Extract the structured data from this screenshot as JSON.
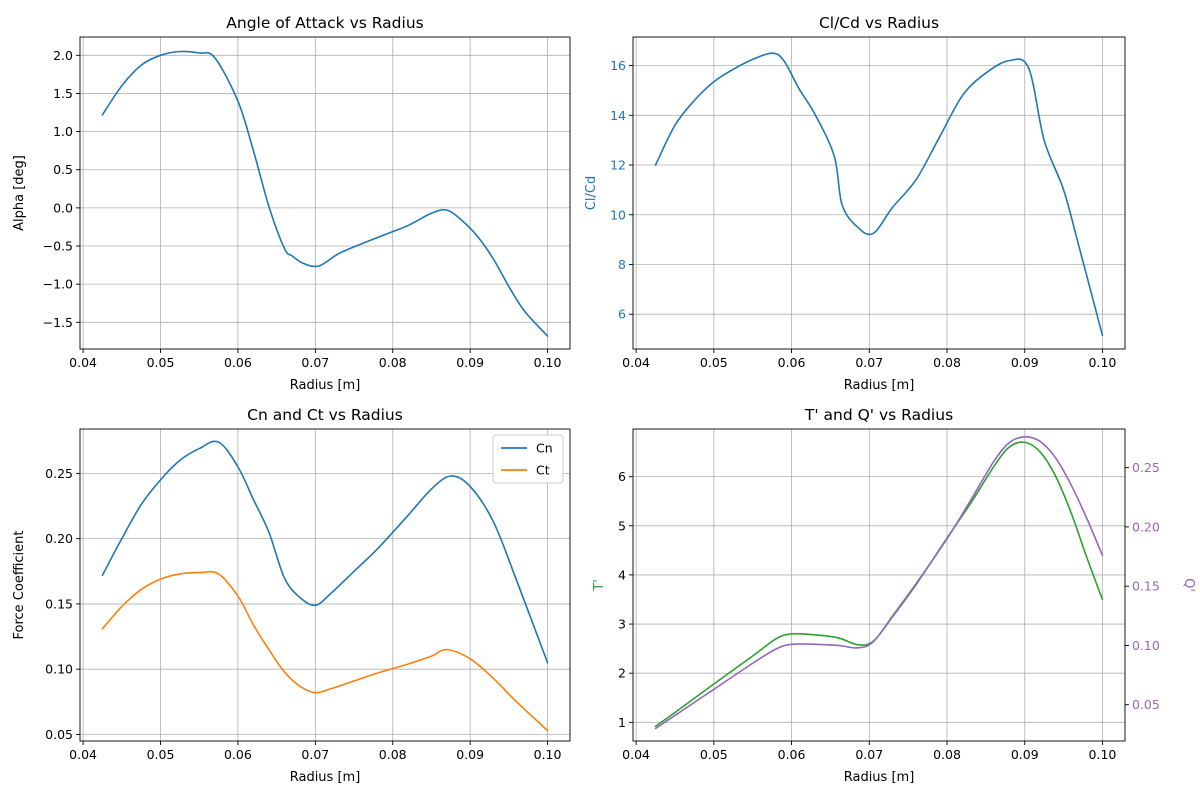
{
  "chart_data": [
    {
      "type": "line",
      "title": "Angle of Attack vs Radius",
      "xlabel": "Radius [m]",
      "ylabel": "Alpha [deg]",
      "xlim": [
        0.0396,
        0.1029
      ],
      "ylim": [
        -1.85,
        2.24
      ],
      "xticks": [
        "0.04",
        "0.05",
        "0.06",
        "0.07",
        "0.08",
        "0.09",
        "0.10"
      ],
      "yticks": [
        "−1.5",
        "−1.0",
        "−0.5",
        "0.0",
        "0.5",
        "1.0",
        "1.5",
        "2.0"
      ],
      "grid": true,
      "series": [
        {
          "color": "#1f77b4",
          "x": [
            0.0425,
            0.045,
            0.0475,
            0.05,
            0.0525,
            0.055,
            0.057,
            0.06,
            0.062,
            0.064,
            0.066,
            0.067,
            0.0685,
            0.0705,
            0.073,
            0.076,
            0.079,
            0.082,
            0.085,
            0.087,
            0.089,
            0.091,
            0.093,
            0.095,
            0.097,
            0.1
          ],
          "y": [
            1.22,
            1.6,
            1.87,
            2.0,
            2.05,
            2.03,
            1.97,
            1.4,
            0.75,
            0.02,
            -0.53,
            -0.63,
            -0.73,
            -0.76,
            -0.6,
            -0.47,
            -0.35,
            -0.23,
            -0.07,
            -0.03,
            -0.17,
            -0.38,
            -0.67,
            -1.03,
            -1.35,
            -1.68
          ]
        }
      ]
    },
    {
      "type": "line",
      "title": "Cl/Cd vs Radius",
      "xlabel": "Radius [m]",
      "ylabel": "Cl/Cd",
      "ylabel_color": "#1f77b4",
      "ytick_color": "#1f77b4",
      "xlim": [
        0.0396,
        0.1029
      ],
      "ylim": [
        4.6,
        17.15
      ],
      "xticks": [
        "0.04",
        "0.05",
        "0.06",
        "0.07",
        "0.08",
        "0.09",
        "0.10"
      ],
      "yticks": [
        "6",
        "8",
        "10",
        "12",
        "14",
        "16"
      ],
      "grid": true,
      "series": [
        {
          "color": "#1f77b4",
          "x": [
            0.0425,
            0.045,
            0.0475,
            0.05,
            0.0525,
            0.055,
            0.0575,
            0.059,
            0.061,
            0.063,
            0.0655,
            0.0665,
            0.0685,
            0.0705,
            0.073,
            0.076,
            0.079,
            0.082,
            0.085,
            0.088,
            0.0905,
            0.0925,
            0.095,
            0.097,
            0.1
          ],
          "y": [
            12.0,
            13.6,
            14.6,
            15.35,
            15.85,
            16.25,
            16.5,
            16.2,
            15.05,
            14.05,
            12.35,
            10.4,
            9.5,
            9.25,
            10.3,
            11.4,
            13.1,
            14.8,
            15.7,
            16.2,
            15.9,
            13.0,
            11.0,
            8.7,
            5.15
          ]
        }
      ]
    },
    {
      "type": "line",
      "title": "Cn and Ct vs Radius",
      "xlabel": "Radius [m]",
      "ylabel": "Force Coefficient",
      "xlim": [
        0.0396,
        0.1029
      ],
      "ylim": [
        0.045,
        0.284
      ],
      "xticks": [
        "0.04",
        "0.05",
        "0.06",
        "0.07",
        "0.08",
        "0.09",
        "0.10"
      ],
      "yticks": [
        "0.05",
        "0.10",
        "0.15",
        "0.20",
        "0.25"
      ],
      "grid": true,
      "legend": "top-right",
      "series": [
        {
          "name": "Cn",
          "color": "#1f77b4",
          "x": [
            0.0425,
            0.045,
            0.0475,
            0.05,
            0.0525,
            0.055,
            0.0575,
            0.06,
            0.062,
            0.064,
            0.066,
            0.068,
            0.07,
            0.072,
            0.075,
            0.078,
            0.082,
            0.085,
            0.0875,
            0.09,
            0.093,
            0.096,
            0.1
          ],
          "y": [
            0.172,
            0.2,
            0.226,
            0.245,
            0.26,
            0.269,
            0.274,
            0.255,
            0.23,
            0.205,
            0.17,
            0.155,
            0.149,
            0.158,
            0.175,
            0.192,
            0.218,
            0.238,
            0.248,
            0.24,
            0.213,
            0.168,
            0.105
          ]
        },
        {
          "name": "Ct",
          "color": "#ff7f0e",
          "x": [
            0.0425,
            0.045,
            0.0475,
            0.05,
            0.0525,
            0.055,
            0.0575,
            0.06,
            0.062,
            0.064,
            0.066,
            0.068,
            0.07,
            0.072,
            0.075,
            0.078,
            0.082,
            0.085,
            0.087,
            0.09,
            0.093,
            0.096,
            0.1
          ],
          "y": [
            0.131,
            0.148,
            0.161,
            0.169,
            0.173,
            0.174,
            0.173,
            0.156,
            0.134,
            0.115,
            0.098,
            0.087,
            0.082,
            0.085,
            0.091,
            0.097,
            0.104,
            0.11,
            0.115,
            0.108,
            0.093,
            0.075,
            0.053
          ]
        }
      ]
    },
    {
      "type": "line",
      "title": "T' and Q' vs Radius",
      "xlabel": "Radius [m]",
      "ylabel": "T'",
      "ylabel_color": "#2ca02c",
      "ylabel_right": "Q'",
      "ylabel_right_color": "#9467bd",
      "xlim": [
        0.0396,
        0.1029
      ],
      "ylim": [
        0.62,
        6.97
      ],
      "ylim_right": [
        0.0194,
        0.2826
      ],
      "xticks": [
        "0.04",
        "0.05",
        "0.06",
        "0.07",
        "0.08",
        "0.09",
        "0.10"
      ],
      "yticks": [
        "1",
        "2",
        "3",
        "4",
        "5",
        "6"
      ],
      "yticks_right": [
        "0.05",
        "0.10",
        "0.15",
        "0.20",
        "0.25"
      ],
      "grid": true,
      "series": [
        {
          "name": "T'",
          "color": "#2ca02c",
          "axis": "left",
          "x": [
            0.0425,
            0.045,
            0.05,
            0.055,
            0.058,
            0.06,
            0.063,
            0.066,
            0.0685,
            0.0705,
            0.073,
            0.076,
            0.08,
            0.083,
            0.086,
            0.088,
            0.09,
            0.092,
            0.094,
            0.096,
            0.098,
            0.1
          ],
          "y": [
            0.92,
            1.2,
            1.78,
            2.35,
            2.7,
            2.8,
            2.78,
            2.72,
            2.58,
            2.65,
            3.15,
            3.8,
            4.75,
            5.45,
            6.2,
            6.6,
            6.7,
            6.5,
            6.0,
            5.25,
            4.35,
            3.5
          ]
        },
        {
          "name": "Q'",
          "color": "#9467bd",
          "axis": "right",
          "x": [
            0.0425,
            0.045,
            0.05,
            0.055,
            0.058,
            0.06,
            0.063,
            0.066,
            0.0685,
            0.0705,
            0.073,
            0.076,
            0.08,
            0.083,
            0.086,
            0.088,
            0.09,
            0.092,
            0.094,
            0.096,
            0.098,
            0.1
          ],
          "y": [
            0.03,
            0.041,
            0.063,
            0.085,
            0.097,
            0.101,
            0.101,
            0.1,
            0.098,
            0.103,
            0.125,
            0.152,
            0.19,
            0.222,
            0.255,
            0.271,
            0.276,
            0.272,
            0.258,
            0.235,
            0.207,
            0.176
          ]
        }
      ]
    }
  ]
}
